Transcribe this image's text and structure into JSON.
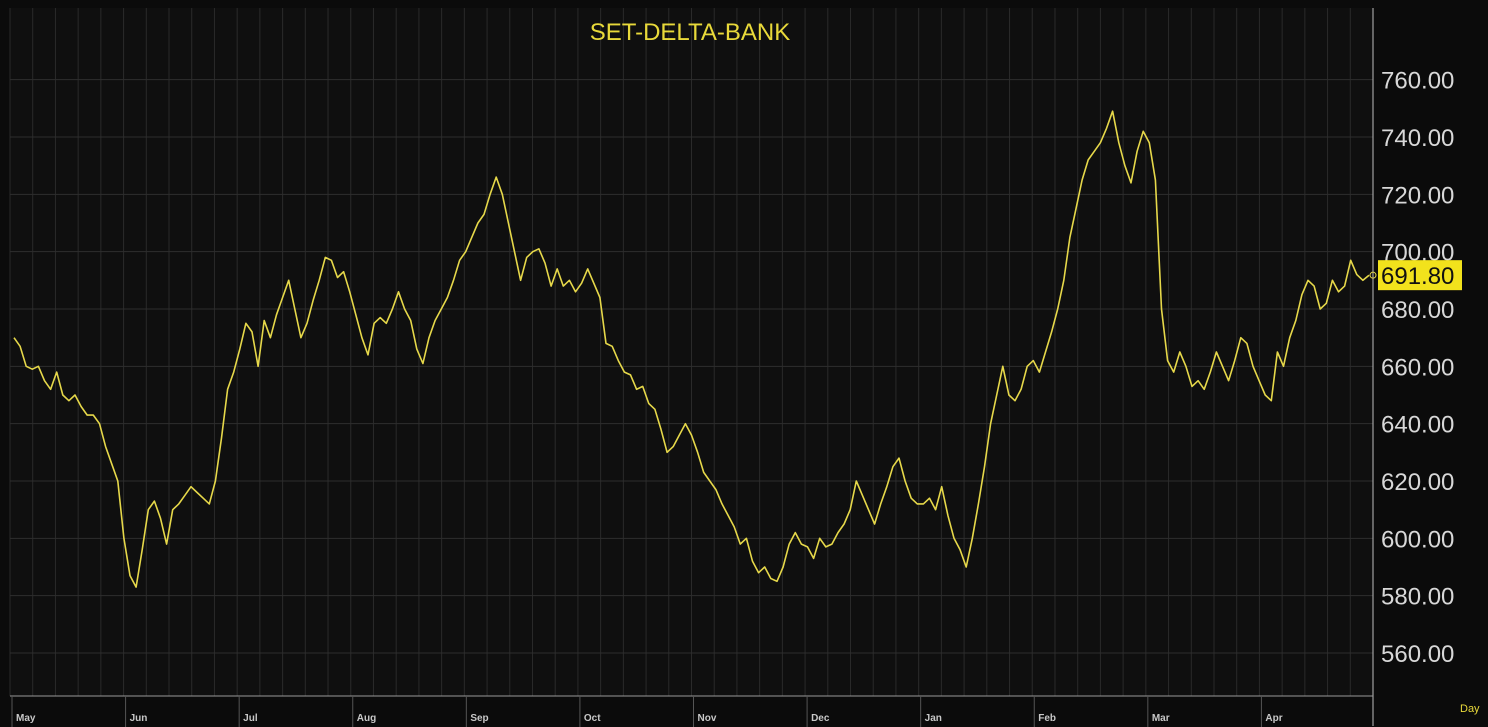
{
  "chart_data": {
    "type": "line",
    "title": "SET-DELTA-BANK",
    "frequency_label": "Day",
    "ylim": [
      545,
      785
    ],
    "grid": true,
    "y_ticks": [
      "760.00",
      "740.00",
      "720.00",
      "700.00",
      "680.00",
      "660.00",
      "640.00",
      "620.00",
      "600.00",
      "580.00",
      "560.00"
    ],
    "x_month_labels": [
      "May",
      "Jun",
      "Jul",
      "Aug",
      "Sep",
      "Oct",
      "Nov",
      "Dec",
      "Jan",
      "Feb",
      "Mar",
      "Apr"
    ],
    "last_value": "691.80",
    "line_color": "#e6d84a",
    "series": [
      {
        "values": [
          670,
          667,
          660,
          659,
          660,
          655,
          652,
          658,
          650,
          648,
          650,
          646,
          643,
          643,
          640,
          632,
          626,
          620,
          600,
          587,
          583,
          596,
          610,
          613,
          607,
          598,
          610,
          612,
          615,
          618,
          616,
          614,
          612,
          620,
          635,
          652,
          658,
          666,
          675,
          672,
          660,
          676,
          670,
          678,
          684,
          690,
          680,
          670,
          675,
          683,
          690,
          698,
          697,
          691,
          693,
          686,
          678,
          670,
          664,
          675,
          677,
          675,
          680,
          686,
          680,
          676,
          666,
          661,
          670,
          676,
          680,
          684,
          690,
          697,
          700,
          705,
          710,
          713,
          720,
          726,
          720,
          710,
          700,
          690,
          698,
          700,
          701,
          696,
          688,
          694,
          688,
          690,
          686,
          689,
          694,
          689,
          684,
          668,
          667,
          662,
          658,
          657,
          652,
          653,
          647,
          645,
          638,
          630,
          632,
          636,
          640,
          636,
          630,
          623,
          620,
          617,
          612,
          608,
          604,
          598,
          600,
          592,
          588,
          590,
          586,
          585,
          590,
          598,
          602,
          598,
          597,
          593,
          600,
          597,
          598,
          602,
          605,
          610,
          620,
          615,
          610,
          605,
          612,
          618,
          625,
          628,
          620,
          614,
          612,
          612,
          614,
          610,
          618,
          608,
          600,
          596,
          590,
          600,
          612,
          625,
          640,
          650,
          660,
          650,
          648,
          652,
          660,
          662,
          658,
          665,
          672,
          680,
          690,
          705,
          715,
          725,
          732,
          735,
          738,
          743,
          749,
          738,
          730,
          724,
          735,
          742,
          738,
          725,
          680,
          662,
          658,
          665,
          660,
          653,
          655,
          652,
          658,
          665,
          660,
          655,
          662,
          670,
          668,
          660,
          655,
          650,
          648,
          665,
          660,
          670,
          676,
          685,
          690,
          688,
          680,
          682,
          690,
          686,
          688,
          697,
          692,
          690,
          691.8
        ]
      }
    ]
  }
}
